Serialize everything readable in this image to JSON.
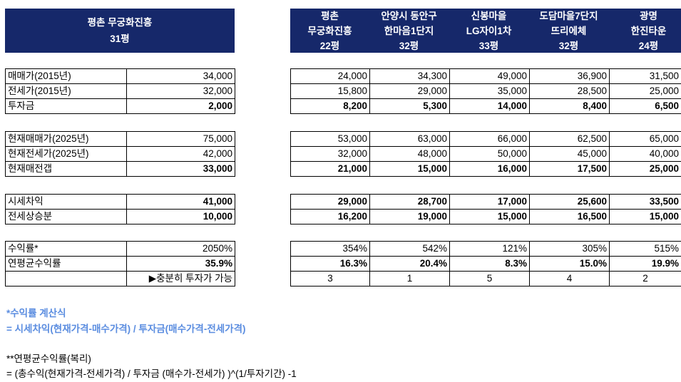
{
  "header": {
    "main": {
      "line1": "평촌 무궁화진흥",
      "line2": "31평"
    },
    "comparisons": [
      {
        "line1": "평촌",
        "line2": "무궁화진흥",
        "line3": "22평"
      },
      {
        "line1": "안양시 동안구",
        "line2": "한마음1단지",
        "line3": "32평"
      },
      {
        "line1": "신봉마을",
        "line2": "LG자이1차",
        "line3": "33평"
      },
      {
        "line1": "도담마을7단지",
        "line2": "뜨리에체",
        "line3": "32평"
      },
      {
        "line1": "광명",
        "line2": "한진타운",
        "line3": "24평"
      }
    ]
  },
  "groups": [
    {
      "rows": [
        {
          "label": "매매가(2015년)",
          "main": "34,000",
          "values": [
            "24,000",
            "34,300",
            "49,000",
            "36,900",
            "31,500"
          ],
          "bold": false
        },
        {
          "label": "전세가(2015년)",
          "main": "32,000",
          "values": [
            "15,800",
            "29,000",
            "35,000",
            "28,500",
            "25,000"
          ],
          "bold": false
        },
        {
          "label": "투자금",
          "main": "2,000",
          "values": [
            "8,200",
            "5,300",
            "14,000",
            "8,400",
            "6,500"
          ],
          "bold": true
        }
      ]
    },
    {
      "rows": [
        {
          "label": "현재매매가(2025년)",
          "main": "75,000",
          "values": [
            "53,000",
            "63,000",
            "66,000",
            "62,500",
            "65,000"
          ],
          "bold": false
        },
        {
          "label": "현재전세가(2025년)",
          "main": "42,000",
          "values": [
            "32,000",
            "48,000",
            "50,000",
            "45,000",
            "40,000"
          ],
          "bold": false
        },
        {
          "label": "현재매전갭",
          "main": "33,000",
          "values": [
            "21,000",
            "15,000",
            "16,000",
            "17,500",
            "25,000"
          ],
          "bold": true
        }
      ]
    },
    {
      "rows": [
        {
          "label": "시세차익",
          "main": "41,000",
          "values": [
            "29,000",
            "28,700",
            "17,000",
            "25,600",
            "33,500"
          ],
          "bold": true
        },
        {
          "label": "전세상승분",
          "main": "10,000",
          "values": [
            "16,200",
            "19,000",
            "15,000",
            "16,500",
            "15,000"
          ],
          "bold": true
        }
      ]
    },
    {
      "rows": [
        {
          "label": "수익률*",
          "main": "2050%",
          "values": [
            "354%",
            "542%",
            "121%",
            "305%",
            "515%"
          ],
          "bold": false
        },
        {
          "label": "연평균수익률",
          "main": "35.9%",
          "values": [
            "16.3%",
            "20.4%",
            "8.3%",
            "15.0%",
            "19.9%"
          ],
          "bold": true
        },
        {
          "label": "",
          "main": "▶충분히 투자가 가능",
          "values": [
            "3",
            "1",
            "5",
            "4",
            "2"
          ],
          "bold": false,
          "rank": true
        }
      ]
    }
  ],
  "notes": {
    "n1_line1": "*수익률 계산식",
    "n1_line2": "= 시세차익(현재가격-매수가격) / 투자금(매수가격-전세가격)",
    "n2_line1": "**연평균수익률(복리)",
    "n2_line2": "= (총수익(현재가격-전세가격) / 투자금 (매수가-전세가) )^(1/투자기간) -1"
  }
}
